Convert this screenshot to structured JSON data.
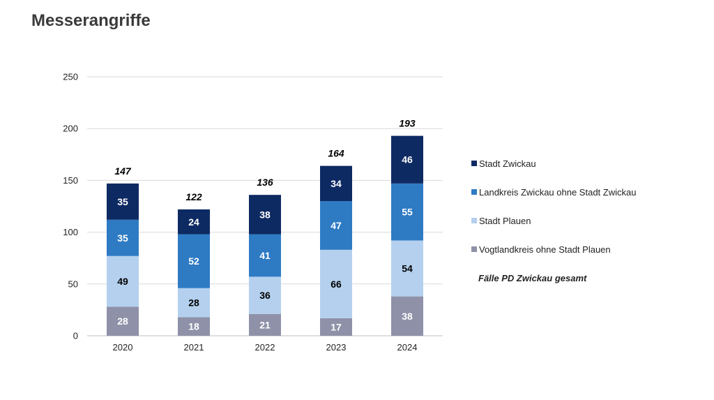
{
  "title": "Messerangriffe",
  "chart_data": {
    "type": "bar",
    "stacked": true,
    "categories": [
      "2020",
      "2021",
      "2022",
      "2023",
      "2024"
    ],
    "series": [
      {
        "name": "Vogtlandkreis ohne Stadt Plauen",
        "values": [
          28,
          18,
          21,
          17,
          38
        ],
        "color": "#8e91a8",
        "label_color": "#ffffff"
      },
      {
        "name": "Stadt Plauen",
        "values": [
          49,
          28,
          36,
          66,
          54
        ],
        "color": "#b4d0ee",
        "label_color": "#000000"
      },
      {
        "name": "Landkreis Zwickau ohne Stadt Zwickau",
        "values": [
          35,
          52,
          41,
          47,
          55
        ],
        "color": "#2e7bc4",
        "label_color": "#ffffff"
      },
      {
        "name": "Stadt Zwickau",
        "values": [
          35,
          24,
          38,
          34,
          46
        ],
        "color": "#0e2a63",
        "label_color": "#ffffff"
      }
    ],
    "totals_name": "Fälle PD Zwickau gesamt",
    "totals": [
      147,
      122,
      136,
      164,
      193
    ],
    "ylim": [
      0,
      250
    ],
    "yticks": [
      0,
      50,
      100,
      150,
      200,
      250
    ],
    "grid": true,
    "legend_position": "right",
    "xlabel": "",
    "ylabel": ""
  }
}
